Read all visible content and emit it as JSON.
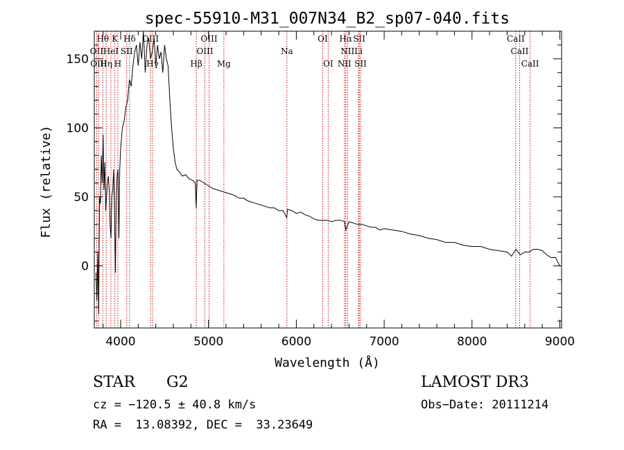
{
  "chart_data": {
    "type": "line",
    "title": "spec-55910-M31_007N34_B2_sp07-040.fits",
    "xlabel": "Wavelength (Å)",
    "ylabel": "Flux (relative)",
    "xlim": [
      3700,
      9020
    ],
    "ylim": [
      -45,
      170
    ],
    "x_ticks": [
      {
        "value": 4000,
        "label": "4000"
      },
      {
        "value": 5000,
        "label": "5000"
      },
      {
        "value": 6000,
        "label": "6000"
      },
      {
        "value": 7000,
        "label": "7000"
      },
      {
        "value": 8000,
        "label": "8000"
      },
      {
        "value": 9000,
        "label": "9000"
      }
    ],
    "y_ticks": [
      {
        "value": 0,
        "label": "0"
      },
      {
        "value": 50,
        "label": "50"
      },
      {
        "value": 100,
        "label": "100"
      },
      {
        "value": 150,
        "label": "150"
      }
    ],
    "line_color": "#000000",
    "marker_color": "#cc0000",
    "spectrum": {
      "x": [
        3720,
        3730,
        3740,
        3750,
        3760,
        3770,
        3780,
        3790,
        3800,
        3810,
        3820,
        3830,
        3840,
        3850,
        3860,
        3870,
        3880,
        3890,
        3900,
        3910,
        3920,
        3930,
        3940,
        3950,
        3960,
        3970,
        3980,
        3990,
        4000,
        4020,
        4040,
        4060,
        4080,
        4100,
        4120,
        4140,
        4160,
        4180,
        4200,
        4220,
        4240,
        4260,
        4280,
        4300,
        4320,
        4340,
        4360,
        4380,
        4400,
        4420,
        4440,
        4460,
        4480,
        4500,
        4520,
        4540,
        4560,
        4580,
        4600,
        4620,
        4640,
        4670,
        4700,
        4740,
        4780,
        4820,
        4850,
        4860,
        4870,
        4900,
        4950,
        5000,
        5050,
        5100,
        5150,
        5200,
        5250,
        5300,
        5350,
        5400,
        5450,
        5500,
        5550,
        5600,
        5650,
        5700,
        5750,
        5800,
        5850,
        5890,
        5900,
        5950,
        6000,
        6050,
        6100,
        6150,
        6200,
        6250,
        6300,
        6350,
        6400,
        6450,
        6500,
        6550,
        6563,
        6600,
        6650,
        6700,
        6750,
        6800,
        6850,
        6900,
        6950,
        7000,
        7100,
        7200,
        7300,
        7400,
        7500,
        7600,
        7700,
        7800,
        7900,
        8000,
        8100,
        8200,
        8300,
        8400,
        8450,
        8500,
        8550,
        8600,
        8650,
        8700,
        8750,
        8800,
        8850,
        8900,
        8950,
        9000
      ],
      "y": [
        -5,
        -25,
        10,
        -35,
        50,
        45,
        80,
        60,
        95,
        55,
        75,
        40,
        50,
        60,
        65,
        55,
        30,
        20,
        50,
        55,
        70,
        40,
        -5,
        50,
        65,
        70,
        20,
        70,
        85,
        100,
        105,
        115,
        120,
        135,
        130,
        145,
        155,
        160,
        145,
        162,
        150,
        170,
        140,
        160,
        165,
        150,
        155,
        165,
        145,
        160,
        150,
        155,
        140,
        160,
        150,
        145,
        120,
        100,
        85,
        75,
        70,
        68,
        65,
        66,
        63,
        62,
        60,
        42,
        62,
        62,
        60,
        58,
        56,
        55,
        54,
        53,
        52,
        51,
        49,
        49,
        47,
        46,
        45,
        44,
        43,
        42,
        42,
        40,
        40,
        35,
        41,
        40,
        38,
        39,
        37,
        36,
        34,
        33,
        33,
        33,
        32,
        33,
        33,
        32,
        26,
        32,
        31,
        30,
        30,
        29,
        28,
        28,
        26,
        27,
        26,
        25,
        23,
        22,
        20,
        19,
        17,
        17,
        15,
        14,
        14,
        12,
        11,
        10,
        7,
        12,
        8,
        10,
        10,
        12,
        12,
        11,
        8,
        6,
        6,
        0
      ]
    },
    "markers": [
      {
        "label": "Hθ",
        "x": 3797,
        "row": 0
      },
      {
        "label": "K",
        "x": 3934,
        "row": 0
      },
      {
        "label": "Hδ",
        "x": 4102,
        "row": 0
      },
      {
        "label": "OIII",
        "x": 4340,
        "row": 0
      },
      {
        "label": "OIII",
        "x": 5007,
        "row": 0
      },
      {
        "label": "OI",
        "x": 6300,
        "row": 0
      },
      {
        "label": "Hα",
        "x": 6563,
        "row": 0
      },
      {
        "label": "SII",
        "x": 6716,
        "row": 0
      },
      {
        "label": "CaII",
        "x": 8498,
        "row": 0
      },
      {
        "label": "OII",
        "x": 3727,
        "row": 1
      },
      {
        "label": "HeI",
        "x": 3889,
        "row": 1
      },
      {
        "label": "SII",
        "x": 4069,
        "row": 1
      },
      {
        "label": "OIII",
        "x": 4959,
        "row": 1
      },
      {
        "label": "Na",
        "x": 5893,
        "row": 1
      },
      {
        "label": "NII",
        "x": 6583,
        "row": 1
      },
      {
        "label": "Li",
        "x": 6708,
        "row": 1
      },
      {
        "label": "CaII",
        "x": 8542,
        "row": 1
      },
      {
        "label": "OIII",
        "x": 3750,
        "row": 2
      },
      {
        "label": "Hη",
        "x": 3835,
        "row": 2
      },
      {
        "label": "H",
        "x": 3968,
        "row": 2
      },
      {
        "label": "Hγ",
        "x": 4363,
        "row": 2
      },
      {
        "label": "Hβ",
        "x": 4861,
        "row": 2
      },
      {
        "label": "Mg",
        "x": 5175,
        "row": 2
      },
      {
        "label": "OI",
        "x": 6363,
        "row": 2
      },
      {
        "label": "NII",
        "x": 6548,
        "row": 2
      },
      {
        "label": "SII",
        "x": 6731,
        "row": 2
      },
      {
        "label": "CaII",
        "x": 8662,
        "row": 2
      }
    ]
  },
  "info": {
    "object_class": "STAR",
    "subclass": "G2",
    "survey": "LAMOST DR3",
    "cz": "cz = −120.5 ± 40.8 km/s",
    "obs_date": "Obs−Date: 20111214",
    "coords": "RA =  13.08392, DEC =  33.23649"
  }
}
